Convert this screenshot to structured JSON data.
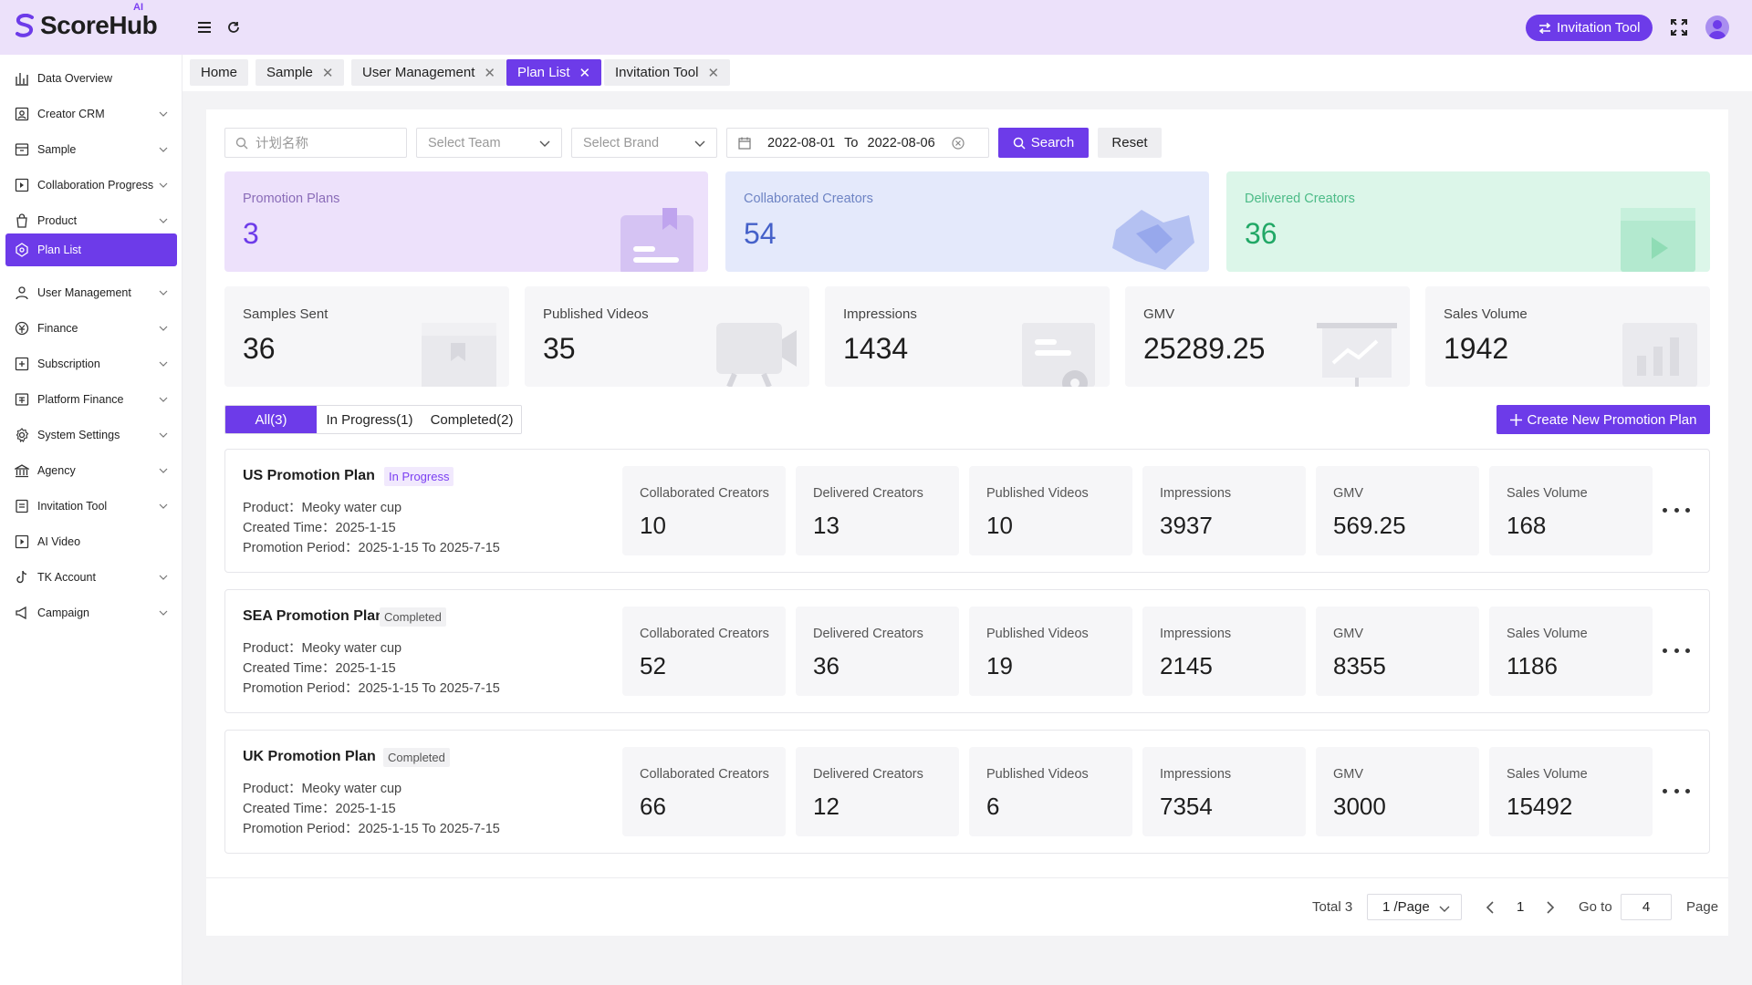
{
  "header": {
    "logo_text": "ScoreHub",
    "logo_ai": "AI",
    "invitation_button": "Invitation Tool"
  },
  "sidebar": {
    "items": [
      {
        "label": "Data Overview",
        "icon": "bar-chart-icon",
        "chevron": false
      },
      {
        "label": "Creator CRM",
        "icon": "crm-icon",
        "chevron": true
      },
      {
        "label": "Sample",
        "icon": "sample-icon",
        "chevron": true
      },
      {
        "label": "Collaboration Progress",
        "icon": "progress-icon",
        "chevron": true
      },
      {
        "label": "Product",
        "icon": "bag-icon",
        "chevron": true
      },
      {
        "label": "Plan List",
        "icon": "plan-icon",
        "chevron": false,
        "active": true
      },
      {
        "label": "User Management",
        "icon": "user-icon",
        "chevron": true
      },
      {
        "label": "Finance",
        "icon": "finance-icon",
        "chevron": true
      },
      {
        "label": "Subscription",
        "icon": "subscription-icon",
        "chevron": true
      },
      {
        "label": "Platform Finance",
        "icon": "platform-finance-icon",
        "chevron": true
      },
      {
        "label": "System Settings",
        "icon": "gear-icon",
        "chevron": true
      },
      {
        "label": "Agency",
        "icon": "bank-icon",
        "chevron": true
      },
      {
        "label": "Invitation Tool",
        "icon": "invitation-icon",
        "chevron": true
      },
      {
        "label": "AI Video",
        "icon": "ai-video-icon",
        "chevron": false
      },
      {
        "label": "TK Account",
        "icon": "tiktok-icon",
        "chevron": true
      },
      {
        "label": "Campaign",
        "icon": "campaign-icon",
        "chevron": true
      }
    ]
  },
  "tabs": [
    {
      "label": "Home",
      "closable": false
    },
    {
      "label": "Sample",
      "closable": true
    },
    {
      "label": "User Management",
      "closable": true
    },
    {
      "label": "Plan List",
      "closable": true,
      "active": true
    },
    {
      "label": "Invitation Tool",
      "closable": true
    }
  ],
  "filters": {
    "plan_name_placeholder": "计划名称",
    "team_placeholder": "Select Team",
    "brand_placeholder": "Select Brand",
    "date_start": "2022-08-01",
    "date_to": "To",
    "date_end": "2022-08-06",
    "search_label": "Search",
    "reset_label": "Reset"
  },
  "summary_top": [
    {
      "label": "Promotion Plans",
      "value": "3",
      "bg": "#ede1fb",
      "label_color": "#8a6cb8",
      "value_color": "#6d3be9"
    },
    {
      "label": "Collaborated Creators",
      "value": "54",
      "bg": "#e4e9fb",
      "label_color": "#6e84c4",
      "value_color": "#4561c9"
    },
    {
      "label": "Delivered Creators",
      "value": "36",
      "bg": "#dcf6e9",
      "label_color": "#4cbb87",
      "value_color": "#21a866"
    }
  ],
  "summary_bottom": [
    {
      "label": "Samples Sent",
      "value": "36"
    },
    {
      "label": "Published Videos",
      "value": "35"
    },
    {
      "label": "Impressions",
      "value": "1434"
    },
    {
      "label": "GMV",
      "value": "25289.25"
    },
    {
      "label": "Sales Volume",
      "value": "1942"
    }
  ],
  "filter_tabs": [
    {
      "label": "All(3)",
      "active": true
    },
    {
      "label": "In Progress(1)"
    },
    {
      "label": "Completed(2)"
    }
  ],
  "create_button": "Create New Promotion Plan",
  "plans": [
    {
      "name": "US Promotion Plan",
      "status": "In Progress",
      "status_type": "prog",
      "product": "Product：Meoky water cup",
      "created": "Created Time：2025-1-15",
      "period": "Promotion Period：2025-1-15 To 2025-7-15",
      "metrics": [
        {
          "label": "Collaborated Creators",
          "value": "10"
        },
        {
          "label": "Delivered Creators",
          "value": "13"
        },
        {
          "label": "Published Videos",
          "value": "10"
        },
        {
          "label": "Impressions",
          "value": "3937"
        },
        {
          "label": "GMV",
          "value": "569.25"
        },
        {
          "label": "Sales Volume",
          "value": "168"
        }
      ]
    },
    {
      "name": "SEA Promotion Plan",
      "status": "Completed",
      "status_type": "done",
      "product": "Product：Meoky water cup",
      "created": "Created Time：2025-1-15",
      "period": "Promotion Period：2025-1-15 To 2025-7-15",
      "metrics": [
        {
          "label": "Collaborated Creators",
          "value": "52"
        },
        {
          "label": "Delivered Creators",
          "value": "36"
        },
        {
          "label": "Published Videos",
          "value": "19"
        },
        {
          "label": "Impressions",
          "value": "2145"
        },
        {
          "label": "GMV",
          "value": "8355"
        },
        {
          "label": "Sales Volume",
          "value": "1186"
        }
      ]
    },
    {
      "name": "UK Promotion Plan",
      "status": "Completed",
      "status_type": "done",
      "product": "Product：Meoky water cup",
      "created": "Created Time：2025-1-15",
      "period": "Promotion Period：2025-1-15 To 2025-7-15",
      "metrics": [
        {
          "label": "Collaborated Creators",
          "value": "66"
        },
        {
          "label": "Delivered Creators",
          "value": "12"
        },
        {
          "label": "Published Videos",
          "value": "6"
        },
        {
          "label": "Impressions",
          "value": "7354"
        },
        {
          "label": "GMV",
          "value": "3000"
        },
        {
          "label": "Sales Volume",
          "value": "15492"
        }
      ]
    }
  ],
  "pagination": {
    "total": "Total 3",
    "page_size": "1 /Page",
    "current_page": "1",
    "goto_label": "Go to",
    "goto_value": "4",
    "page_label": "Page"
  }
}
